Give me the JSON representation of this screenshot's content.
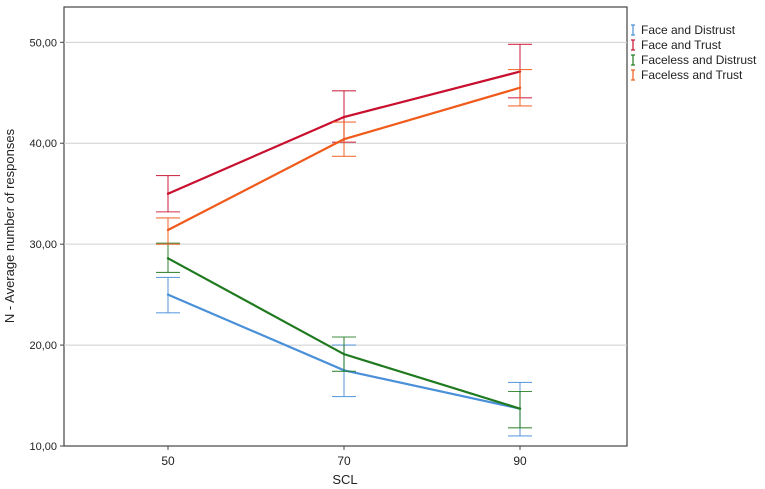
{
  "chart_data": {
    "type": "line",
    "xlabel": "SCL",
    "ylabel": "N - Average number of responses",
    "x": [
      50,
      70,
      90
    ],
    "categories": [
      "50",
      "70",
      "90"
    ],
    "ylim": [
      10,
      53.5
    ],
    "yticks": [
      "10,00",
      "20,00",
      "30,00",
      "40,00",
      "50,00"
    ],
    "grid": "horizontal",
    "legend_position": "right",
    "series": [
      {
        "name": "Face and Distrust",
        "color": "#4a90d9",
        "values": [
          25.0,
          17.5,
          13.7
        ],
        "err_low": [
          23.2,
          14.9,
          11.0
        ],
        "err_high": [
          26.7,
          20.0,
          16.3
        ]
      },
      {
        "name": "Face and Trust",
        "color": "#c8102e",
        "values": [
          35.0,
          42.6,
          47.1
        ],
        "err_low": [
          33.2,
          40.1,
          44.5
        ],
        "err_high": [
          36.8,
          45.2,
          49.8
        ]
      },
      {
        "name": "Faceless and Distrust",
        "color": "#1f7a1f",
        "values": [
          28.6,
          19.1,
          13.7
        ],
        "err_low": [
          27.2,
          17.4,
          11.8
        ],
        "err_high": [
          30.1,
          20.8,
          15.4
        ]
      },
      {
        "name": "Faceless and Trust",
        "color": "#f05a1a",
        "values": [
          31.4,
          40.4,
          45.5
        ],
        "err_low": [
          30.0,
          38.7,
          43.7
        ],
        "err_high": [
          32.6,
          42.1,
          47.3
        ]
      }
    ]
  }
}
